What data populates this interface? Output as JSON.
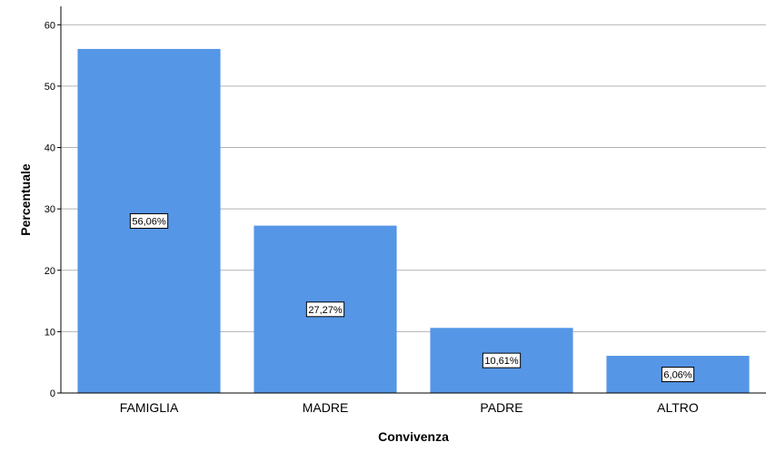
{
  "chart_data": {
    "type": "bar",
    "title": "",
    "xlabel": "Convivenza",
    "ylabel": "Percentuale",
    "categories": [
      "FAMIGLIA",
      "MADRE",
      "PADRE",
      "ALTRO"
    ],
    "values": [
      56.06,
      27.27,
      10.61,
      6.06
    ],
    "data_labels": [
      "56,06%",
      "27,27%",
      "10,61%",
      "6,06%"
    ],
    "y_ticks": [
      "0",
      "10",
      "20",
      "30",
      "40",
      "50",
      "60"
    ],
    "ylim": [
      0,
      63
    ],
    "grid": true,
    "legend": "none",
    "bar_color": "#5596e6",
    "grid_color": "#b3b3b3"
  }
}
